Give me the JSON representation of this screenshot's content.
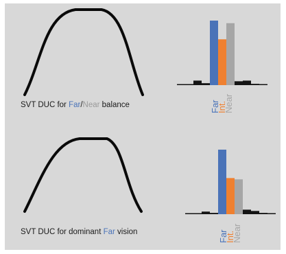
{
  "panels": [
    {
      "caption": {
        "prefix": "SVT DUC for ",
        "far": "Far",
        "slash": "/",
        "near": "Near",
        "suffix": " balance"
      },
      "chart_data": {
        "type": "bar",
        "categories": [
          "",
          "",
          "",
          "",
          "Far",
          "Int.",
          "Near",
          "",
          "",
          "",
          ""
        ],
        "values": [
          0.5,
          1,
          7,
          3,
          100,
          71,
          96,
          6,
          7,
          2,
          1
        ],
        "colors": [
          "#141414",
          "#141414",
          "#141414",
          "#141414",
          "#4a73b8",
          "#ef8030",
          "#a6a6a6",
          "#141414",
          "#141414",
          "#141414",
          "#141414"
        ],
        "ylim": [
          0,
          100
        ],
        "labels": [
          "Far",
          "Int.",
          "Near"
        ]
      }
    },
    {
      "caption": {
        "prefix": "SVT DUC for dominant ",
        "far": "Far",
        "suffix": " vision"
      },
      "chart_data": {
        "type": "bar",
        "categories": [
          "",
          "",
          "",
          "",
          "Far",
          "Int.",
          "Near",
          "",
          "",
          "",
          ""
        ],
        "values": [
          0.5,
          1,
          4,
          2,
          100,
          56,
          54,
          7,
          5,
          2,
          1
        ],
        "colors": [
          "#141414",
          "#141414",
          "#141414",
          "#141414",
          "#4a73b8",
          "#ef8030",
          "#a6a6a6",
          "#141414",
          "#141414",
          "#141414",
          "#141414"
        ],
        "ylim": [
          0,
          100
        ],
        "labels": [
          "Far",
          "Int.",
          "Near"
        ]
      }
    }
  ],
  "colors": {
    "far": "#4a73b8",
    "int": "#ef8030",
    "near": "#a6a6a6",
    "other": "#141414",
    "panel": "#d8d8d8"
  }
}
